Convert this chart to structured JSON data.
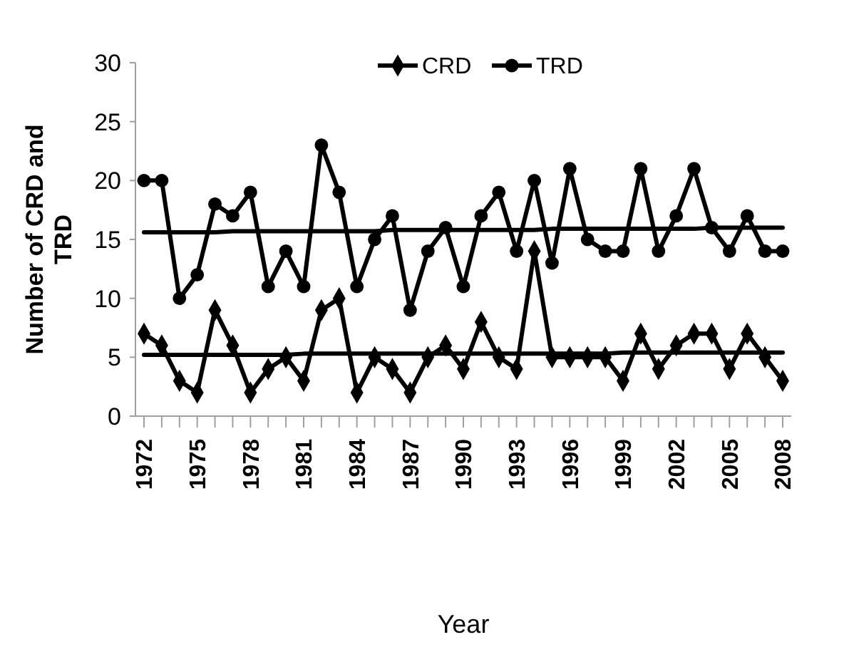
{
  "chart_data": {
    "type": "line",
    "xlabel": "Year",
    "ylabel": "Number of CRD and TRD",
    "categories": [
      "1972",
      null,
      null,
      "1975",
      null,
      null,
      "1978",
      null,
      null,
      "1981",
      null,
      null,
      "1984",
      null,
      null,
      "1987",
      null,
      null,
      "1990",
      null,
      null,
      "1993",
      null,
      null,
      "1996",
      null,
      null,
      "1999",
      null,
      null,
      "2002",
      null,
      null,
      "2005",
      null,
      null,
      "2008"
    ],
    "series": [
      {
        "name": "CRD",
        "color": "#000000",
        "marker": "diamond",
        "values": [
          7,
          6,
          3,
          2,
          9,
          6,
          2,
          4,
          5,
          3,
          9,
          10,
          2,
          5,
          4,
          2,
          5,
          6,
          4,
          8,
          5,
          4,
          14,
          5,
          5,
          5,
          5,
          3,
          7,
          4,
          6,
          7,
          7,
          4,
          7,
          5,
          3
        ]
      },
      {
        "name": "TRD",
        "color": "#000000",
        "marker": "circle",
        "values": [
          20,
          20,
          10,
          12,
          18,
          17,
          19,
          11,
          14,
          11,
          23,
          19,
          11,
          15,
          17,
          9,
          14,
          16,
          11,
          17,
          19,
          14,
          20,
          13,
          21,
          15,
          14,
          14,
          21,
          14,
          17,
          21,
          16,
          14,
          17,
          14,
          14
        ]
      },
      {
        "color": "#000000",
        "marker": "none",
        "values": [
          5.2,
          5.2,
          5.2,
          5.2,
          5.2,
          5.2,
          5.2,
          5.2,
          5.2,
          5.3,
          5.3,
          5.3,
          5.3,
          5.3,
          5.3,
          5.3,
          5.3,
          5.3,
          5.3,
          5.3,
          5.3,
          5.3,
          5.3,
          5.3,
          5.3,
          5.3,
          5.3,
          5.4,
          5.4,
          5.4,
          5.4,
          5.4,
          5.4,
          5.4,
          5.4,
          5.4,
          5.4
        ]
      },
      {
        "color": "#000000",
        "marker": "none",
        "values": [
          15.6,
          15.6,
          15.6,
          15.6,
          15.6,
          15.7,
          15.7,
          15.7,
          15.7,
          15.7,
          15.7,
          15.7,
          15.7,
          15.7,
          15.8,
          15.8,
          15.8,
          15.8,
          15.8,
          15.8,
          15.8,
          15.8,
          15.8,
          15.9,
          15.9,
          15.9,
          15.9,
          15.9,
          15.9,
          15.9,
          15.9,
          15.9,
          16,
          16,
          16,
          16,
          16
        ]
      }
    ],
    "ylim": [
      0,
      30
    ],
    "yticks": [
      0,
      5,
      10,
      15,
      20,
      25,
      30
    ],
    "grid": false,
    "legend": "top"
  }
}
